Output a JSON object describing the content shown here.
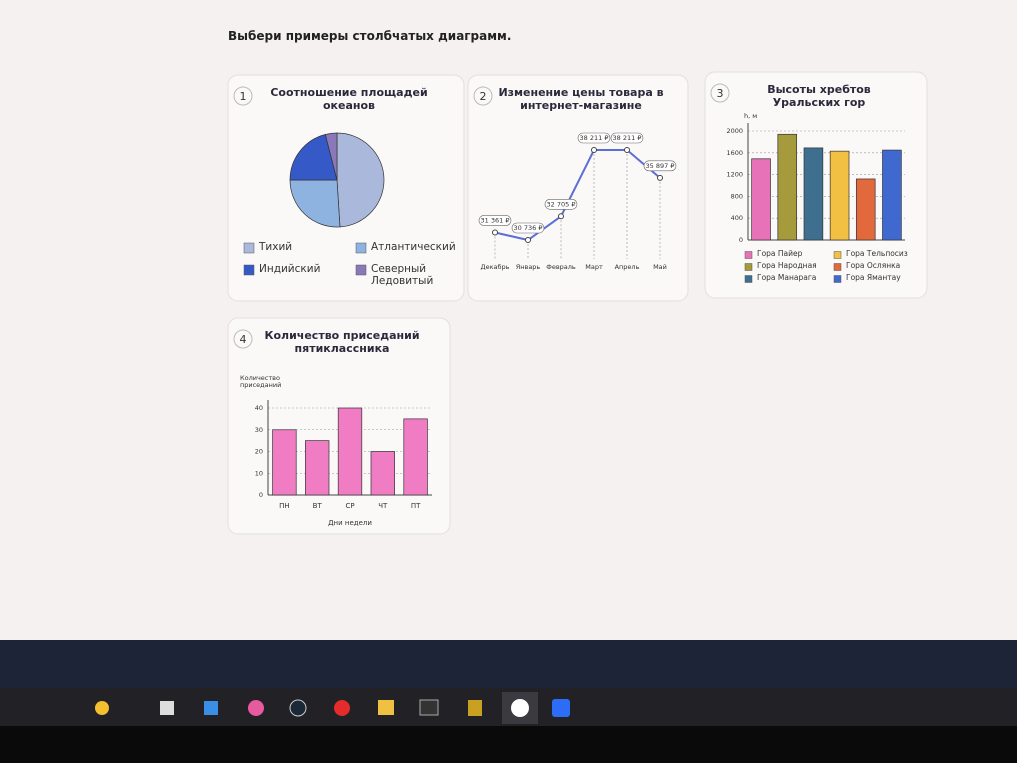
{
  "page": {
    "instruction": "Выбери примеры столбчатых диаграмм."
  },
  "chart_data": [
    {
      "type": "pie",
      "number": 1,
      "title": "Соотношение площадей океанов",
      "categories": [
        "Тихий",
        "Атлантический",
        "Индийский",
        "Северный Ледовитый"
      ],
      "values": [
        49,
        26,
        21,
        4
      ],
      "colors": [
        "#a9b8db",
        "#8fb3e0",
        "#3659c8",
        "#8b78b9"
      ],
      "legend": "bottom"
    },
    {
      "type": "line",
      "number": 2,
      "title": "Изменение цены товара в интернет-магазине",
      "categories": [
        "Декабрь",
        "Январь",
        "Февраль",
        "Март",
        "Апрель",
        "Май"
      ],
      "values": [
        31361,
        30736,
        32705,
        38211,
        38211,
        35897
      ],
      "value_labels": [
        "31 361 ₽",
        "30 736 ₽",
        "32 705 ₽",
        "38 211 ₽",
        "38 211 ₽",
        "35 897 ₽"
      ],
      "color": "#5b6fd6"
    },
    {
      "type": "bar",
      "number": 3,
      "title": "Высоты хребтов Уральских гор",
      "y_label": "h, м",
      "categories": [
        "Гора Пайер",
        "Гора Народная",
        "Гора Манарага",
        "Гора Тельпосиз",
        "Гора Ослянка",
        "Гора Ямантау"
      ],
      "values": [
        1490,
        1940,
        1690,
        1630,
        1120,
        1650
      ],
      "colors": [
        "#e872b8",
        "#a59a3c",
        "#3f6f8f",
        "#f2c143",
        "#e2693c",
        "#4069d0"
      ],
      "ylim": [
        0,
        2000
      ],
      "yticks": [
        0,
        400,
        800,
        1200,
        1600,
        2000
      ],
      "grid": true,
      "legend": "bottom"
    },
    {
      "type": "bar",
      "number": 4,
      "title": "Количество приседаний пятиклассника",
      "y_label": "Количество приседаний",
      "x_label": "Дни недели",
      "categories": [
        "ПН",
        "ВТ",
        "СР",
        "ЧТ",
        "ПТ"
      ],
      "values": [
        30,
        25,
        40,
        20,
        35
      ],
      "color": "#f07cc4",
      "ylim": [
        0,
        40
      ],
      "yticks": [
        0,
        10,
        20,
        30,
        40
      ],
      "grid": true
    }
  ]
}
